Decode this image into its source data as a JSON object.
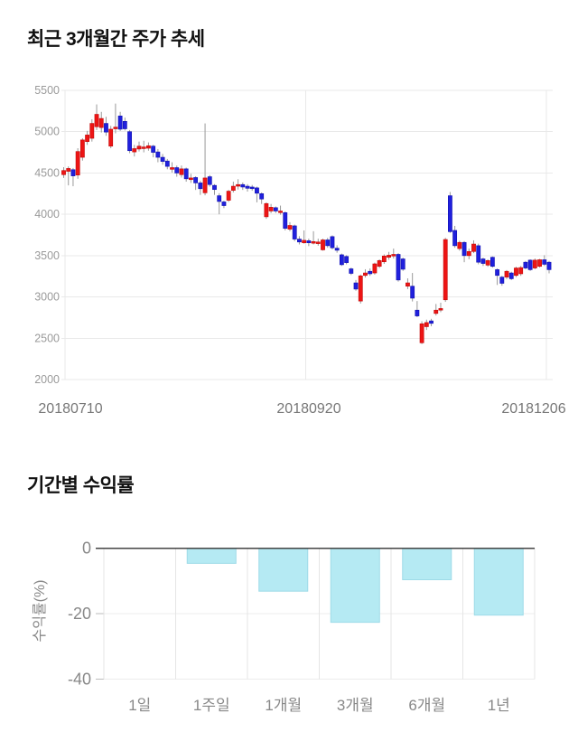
{
  "chart_data": [
    {
      "type": "candlestick",
      "title": "최근 3개월간 주가 추세",
      "x_tick_labels": [
        "20180710",
        "20180920",
        "20181206"
      ],
      "y_ticks": [
        5500,
        5000,
        4500,
        4000,
        3500,
        3000,
        2500,
        2000
      ],
      "ylim": [
        2000,
        5500
      ],
      "grid": true,
      "legend": false,
      "colors": {
        "up": "#ed1515",
        "up_border": "#c40808",
        "down": "#2020dd",
        "down_border": "#1010b0",
        "wick": "#999999",
        "gridline": "#e9e9e9",
        "y_tick_text": "#9a9a9a",
        "x_tick_text": "#777777"
      },
      "candle_format": [
        "open",
        "high",
        "low",
        "close"
      ],
      "candles": [
        [
          4480,
          4570,
          4440,
          4530
        ],
        [
          4520,
          4580,
          4350,
          4555
        ],
        [
          4540,
          4560,
          4340,
          4465
        ],
        [
          4475,
          4800,
          4430,
          4760
        ],
        [
          4690,
          4920,
          4650,
          4900
        ],
        [
          4880,
          5010,
          4840,
          4960
        ],
        [
          4920,
          5150,
          4880,
          5100
        ],
        [
          5060,
          5330,
          5020,
          5210
        ],
        [
          5050,
          5240,
          4990,
          5160
        ],
        [
          5100,
          5180,
          4950,
          4995
        ],
        [
          4825,
          5070,
          4800,
          5030
        ],
        [
          5035,
          5340,
          4980,
          5055
        ],
        [
          5190,
          5240,
          5010,
          5030
        ],
        [
          5125,
          5170,
          5015,
          5035
        ],
        [
          5000,
          5020,
          4740,
          4770
        ],
        [
          4755,
          4840,
          4700,
          4795
        ],
        [
          4790,
          4880,
          4760,
          4825
        ],
        [
          4810,
          4890,
          4750,
          4815
        ],
        [
          4800,
          4870,
          4770,
          4830
        ],
        [
          4825,
          4840,
          4690,
          4750
        ],
        [
          4755,
          4790,
          4630,
          4690
        ],
        [
          4690,
          4730,
          4600,
          4640
        ],
        [
          4645,
          4670,
          4545,
          4580
        ],
        [
          4545,
          4630,
          4505,
          4565
        ],
        [
          4565,
          4590,
          4455,
          4500
        ],
        [
          4480,
          4590,
          4445,
          4550
        ],
        [
          4550,
          4565,
          4395,
          4430
        ],
        [
          4420,
          4490,
          4380,
          4440
        ],
        [
          4445,
          4460,
          4295,
          4380
        ],
        [
          4380,
          4405,
          4235,
          4310
        ],
        [
          4260,
          5100,
          4230,
          4440
        ],
        [
          4455,
          4475,
          4335,
          4360
        ],
        [
          4350,
          4365,
          4235,
          4300
        ],
        [
          4225,
          4255,
          4000,
          4155
        ],
        [
          4150,
          4165,
          4075,
          4105
        ],
        [
          4170,
          4295,
          4150,
          4280
        ],
        [
          4290,
          4395,
          4265,
          4340
        ],
        [
          4350,
          4425,
          4300,
          4360
        ],
        [
          4360,
          4385,
          4295,
          4330
        ],
        [
          4340,
          4365,
          4275,
          4315
        ],
        [
          4330,
          4355,
          4285,
          4320
        ],
        [
          4320,
          4335,
          4145,
          4255
        ],
        [
          4250,
          4265,
          4125,
          4185
        ],
        [
          3970,
          4145,
          3945,
          4130
        ],
        [
          4040,
          4125,
          4015,
          4085
        ],
        [
          4080,
          4095,
          4015,
          4040
        ],
        [
          4030,
          4105,
          3995,
          4040
        ],
        [
          4020,
          4035,
          3805,
          3830
        ],
        [
          3820,
          3905,
          3795,
          3865
        ],
        [
          3860,
          3875,
          3675,
          3700
        ],
        [
          3700,
          3735,
          3635,
          3665
        ],
        [
          3655,
          3805,
          3645,
          3685
        ],
        [
          3680,
          3705,
          3615,
          3655
        ],
        [
          3655,
          3795,
          3635,
          3670
        ],
        [
          3645,
          3705,
          3620,
          3665
        ],
        [
          3570,
          3705,
          3560,
          3690
        ],
        [
          3690,
          3715,
          3595,
          3620
        ],
        [
          3730,
          3745,
          3575,
          3595
        ],
        [
          3590,
          3625,
          3535,
          3565
        ],
        [
          3510,
          3525,
          3375,
          3390
        ],
        [
          3490,
          3505,
          3395,
          3415
        ],
        [
          3340,
          3355,
          3265,
          3285
        ],
        [
          3170,
          3205,
          3075,
          3095
        ],
        [
          2950,
          3270,
          2920,
          3255
        ],
        [
          3260,
          3335,
          3235,
          3290
        ],
        [
          3310,
          3345,
          3255,
          3280
        ],
        [
          3290,
          3415,
          3270,
          3400
        ],
        [
          3370,
          3455,
          3350,
          3440
        ],
        [
          3425,
          3515,
          3400,
          3495
        ],
        [
          3480,
          3545,
          3450,
          3505
        ],
        [
          3505,
          3585,
          3465,
          3515
        ],
        [
          3515,
          3530,
          3185,
          3205
        ],
        [
          3460,
          3475,
          3315,
          3335
        ],
        [
          3130,
          3225,
          3095,
          3170
        ],
        [
          3130,
          3290,
          2945,
          2985
        ],
        [
          2840,
          2950,
          2755,
          2770
        ],
        [
          2445,
          2705,
          2430,
          2675
        ],
        [
          2640,
          2725,
          2600,
          2690
        ],
        [
          2710,
          2735,
          2645,
          2680
        ],
        [
          2800,
          2915,
          2775,
          2840
        ],
        [
          2845,
          2930,
          2815,
          2860
        ],
        [
          2965,
          3715,
          2940,
          3695
        ],
        [
          4225,
          4270,
          3775,
          3790
        ],
        [
          3805,
          3860,
          3595,
          3620
        ],
        [
          3585,
          3680,
          3560,
          3660
        ],
        [
          3660,
          3675,
          3420,
          3500
        ],
        [
          3500,
          3585,
          3455,
          3550
        ],
        [
          3550,
          3685,
          3530,
          3640
        ],
        [
          3620,
          3645,
          3395,
          3420
        ],
        [
          3460,
          3475,
          3375,
          3405
        ],
        [
          3385,
          3455,
          3365,
          3440
        ],
        [
          3480,
          3490,
          3355,
          3370
        ],
        [
          3330,
          3345,
          3145,
          3260
        ],
        [
          3240,
          3255,
          3135,
          3165
        ],
        [
          3240,
          3325,
          3215,
          3310
        ],
        [
          3290,
          3305,
          3205,
          3220
        ],
        [
          3260,
          3365,
          3240,
          3350
        ],
        [
          3280,
          3375,
          3255,
          3355
        ],
        [
          3420,
          3435,
          3335,
          3350
        ],
        [
          3445,
          3455,
          3315,
          3330
        ],
        [
          3350,
          3465,
          3335,
          3445
        ],
        [
          3370,
          3460,
          3355,
          3450
        ],
        [
          3450,
          3505,
          3375,
          3395
        ],
        [
          3420,
          3435,
          3285,
          3330
        ]
      ]
    },
    {
      "type": "bar",
      "title": "기간별 수익률",
      "ylabel": "수익률(%)",
      "categories": [
        "1일",
        "1주일",
        "1개월",
        "3개월",
        "6개월",
        "1년"
      ],
      "values": [
        0,
        -4.6,
        -13.1,
        -22.6,
        -9.6,
        -20.4
      ],
      "y_ticks": [
        0,
        -20,
        -40
      ],
      "ylim": [
        -40,
        0
      ],
      "grid": true,
      "legend": false,
      "colors": {
        "bar": "#b5eaf3",
        "bar_border": "#9edbe8",
        "axis_line": "#444444",
        "gridline": "#ececec",
        "tick": "#bbbbbb",
        "tick_text": "#888888",
        "category_text": "#888888"
      }
    }
  ]
}
